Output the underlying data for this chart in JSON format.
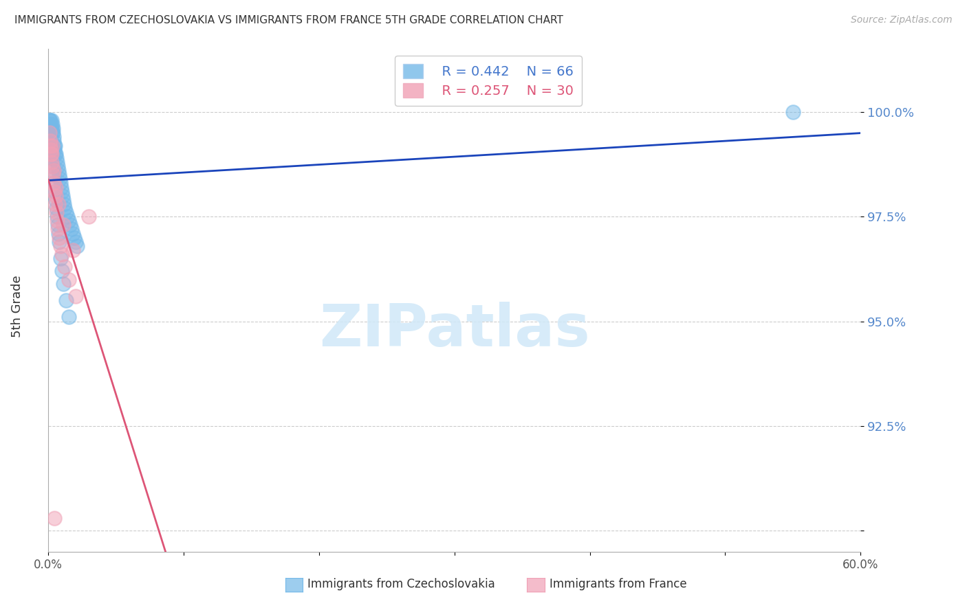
{
  "title": "IMMIGRANTS FROM CZECHOSLOVAKIA VS IMMIGRANTS FROM FRANCE 5TH GRADE CORRELATION CHART",
  "source": "Source: ZipAtlas.com",
  "ylabel": "5th Grade",
  "yticks": [
    90.0,
    92.5,
    95.0,
    97.5,
    100.0
  ],
  "ytick_labels": [
    "",
    "92.5%",
    "95.0%",
    "97.5%",
    "100.0%"
  ],
  "xmin": 0.0,
  "xmax": 60.0,
  "ymin": 89.5,
  "ymax": 101.5,
  "legend1_r": "R = 0.442",
  "legend1_n": "N = 66",
  "legend2_r": "R = 0.257",
  "legend2_n": "N = 30",
  "blue_color": "#74b9e8",
  "pink_color": "#f0a0b5",
  "trendline_blue": "#1a44bb",
  "trendline_pink": "#dd5577",
  "watermark_color": "#d0e8f8",
  "blue_x": [
    0.1,
    0.12,
    0.15,
    0.18,
    0.2,
    0.22,
    0.25,
    0.28,
    0.3,
    0.33,
    0.35,
    0.38,
    0.4,
    0.42,
    0.45,
    0.48,
    0.5,
    0.55,
    0.6,
    0.65,
    0.7,
    0.75,
    0.8,
    0.85,
    0.9,
    0.95,
    1.0,
    1.05,
    1.1,
    1.15,
    1.2,
    1.3,
    1.4,
    1.5,
    1.6,
    1.7,
    1.8,
    1.9,
    2.0,
    2.1,
    0.08,
    0.1,
    0.12,
    0.14,
    0.16,
    0.18,
    0.2,
    0.23,
    0.26,
    0.3,
    0.35,
    0.4,
    0.45,
    0.5,
    0.55,
    0.6,
    0.65,
    0.7,
    0.75,
    0.8,
    0.9,
    1.0,
    1.1,
    1.3,
    1.5,
    55.0
  ],
  "blue_y": [
    99.8,
    99.7,
    99.8,
    99.6,
    99.7,
    99.8,
    99.6,
    99.5,
    99.7,
    99.6,
    99.5,
    99.4,
    99.3,
    99.2,
    99.1,
    99.0,
    99.2,
    99.0,
    98.9,
    98.8,
    98.7,
    98.6,
    98.5,
    98.4,
    98.3,
    98.2,
    98.1,
    98.0,
    97.9,
    97.8,
    97.7,
    97.6,
    97.5,
    97.4,
    97.3,
    97.2,
    97.1,
    97.0,
    96.9,
    96.8,
    99.8,
    99.7,
    99.6,
    99.5,
    99.4,
    99.3,
    99.2,
    99.1,
    99.0,
    98.9,
    98.7,
    98.5,
    98.3,
    98.1,
    97.9,
    97.7,
    97.5,
    97.3,
    97.1,
    96.9,
    96.5,
    96.2,
    95.9,
    95.5,
    95.1,
    100.0
  ],
  "pink_x": [
    0.1,
    0.15,
    0.18,
    0.2,
    0.25,
    0.28,
    0.3,
    0.35,
    0.4,
    0.45,
    0.5,
    0.55,
    0.6,
    0.65,
    0.7,
    0.8,
    0.9,
    1.0,
    1.2,
    1.5,
    2.0,
    3.0,
    0.12,
    0.22,
    0.38,
    0.55,
    0.75,
    1.1,
    1.8,
    0.45
  ],
  "pink_y": [
    99.5,
    99.3,
    99.1,
    99.0,
    98.8,
    98.7,
    99.2,
    98.5,
    98.3,
    98.1,
    97.8,
    98.0,
    97.6,
    97.4,
    97.2,
    97.0,
    96.8,
    96.6,
    96.3,
    96.0,
    95.6,
    97.5,
    99.2,
    99.0,
    98.6,
    98.2,
    97.8,
    97.3,
    96.7,
    90.3
  ]
}
